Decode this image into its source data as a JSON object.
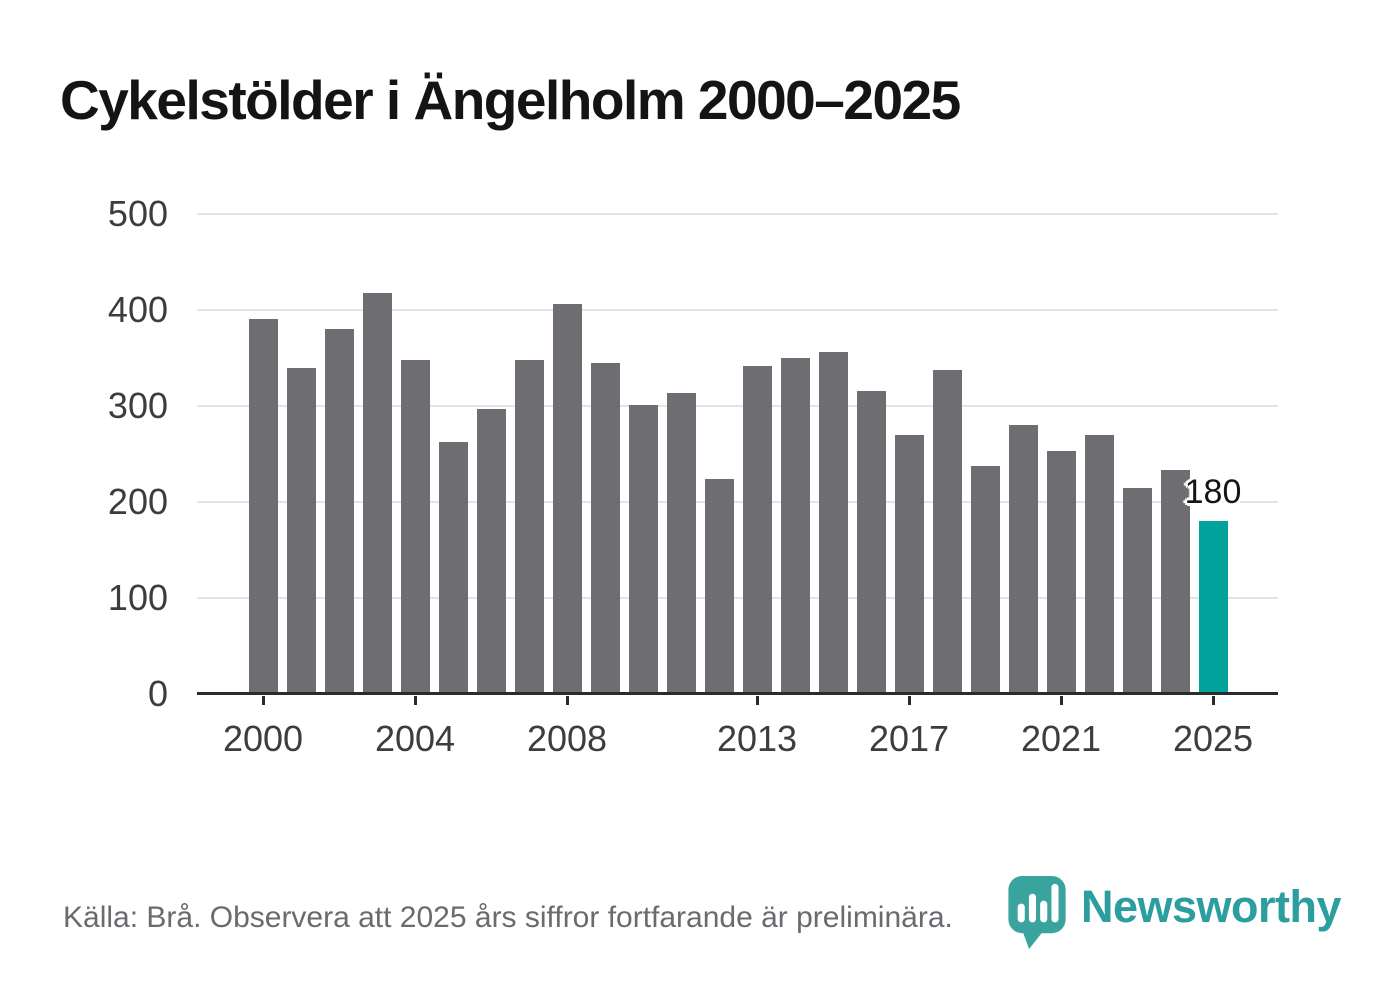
{
  "header": {
    "title": "Cykelstölder i Ängelholm 2000–2025"
  },
  "chart_data": {
    "type": "bar",
    "title": "Cykelstölder i Ängelholm 2000–2025",
    "categories": [
      2000,
      2001,
      2002,
      2003,
      2004,
      2005,
      2006,
      2007,
      2008,
      2009,
      2010,
      2011,
      2012,
      2013,
      2014,
      2015,
      2016,
      2017,
      2018,
      2019,
      2020,
      2021,
      2022,
      2023,
      2024,
      2025
    ],
    "values": [
      391,
      340,
      380,
      418,
      348,
      263,
      297,
      348,
      406,
      345,
      301,
      314,
      224,
      342,
      350,
      356,
      316,
      270,
      337,
      238,
      280,
      253,
      270,
      215,
      233,
      180
    ],
    "xlabel": "",
    "ylabel": "",
    "ylim": [
      0,
      500
    ],
    "yticks": [
      0,
      100,
      200,
      300,
      400,
      500
    ],
    "xticks": [
      2000,
      2004,
      2008,
      2013,
      2017,
      2021,
      2025
    ],
    "grid": "horizontal",
    "legend": "none",
    "bar_color": "#6e6d72",
    "highlight": {
      "category": 2025,
      "value": 180,
      "label": "180",
      "color": "#00a29b"
    }
  },
  "footer": {
    "source_note": "Källa: Brå. Observera att 2025 års siffror fortfarande är preliminära.",
    "brand": "Newsworthy"
  },
  "colors": {
    "bar": "#6e6d72",
    "highlight": "#00a29b",
    "gridline": "#e3e3e3",
    "axis": "#2b2b2b",
    "logo": "#3aa39d",
    "wordmark": "#2d9e9f"
  }
}
